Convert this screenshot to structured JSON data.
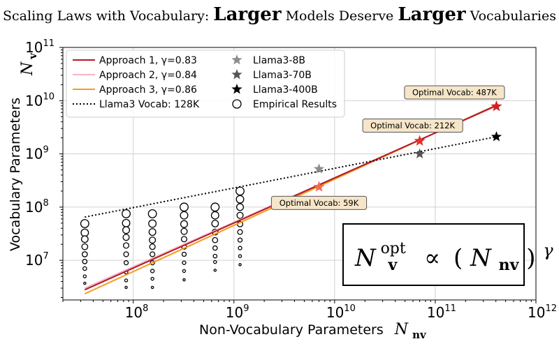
{
  "title": {
    "part1": "Scaling Laws with Vocabulary:",
    "emph1": "Larger",
    "part2": "Models Deserve",
    "emph2": "Larger",
    "part3": "Vocabularies"
  },
  "chart_data": {
    "type": "line",
    "xscale": "log",
    "yscale": "log",
    "xlim": [
      20000000,
      1000000000000
    ],
    "ylim": [
      1800000,
      100000000000
    ],
    "grid": true,
    "legend_position": "top-left",
    "xlabel": "Non-Vocabulary Parameters",
    "xlabel_symbol": "N",
    "xlabel_subscript": "nv",
    "ylabel": "Vocabulary Parameters",
    "ylabel_symbol": "N",
    "ylabel_subscript": "v",
    "x_ticks": [
      {
        "value": 100000000,
        "base": "10",
        "exp": "8"
      },
      {
        "value": 1000000000,
        "base": "10",
        "exp": "9"
      },
      {
        "value": 10000000000,
        "base": "10",
        "exp": "10"
      },
      {
        "value": 100000000000,
        "base": "10",
        "exp": "11"
      },
      {
        "value": 1000000000000,
        "base": "10",
        "exp": "12"
      }
    ],
    "y_ticks": [
      {
        "value": 10000000,
        "base": "10",
        "exp": "7"
      },
      {
        "value": 100000000,
        "base": "10",
        "exp": "8"
      },
      {
        "value": 1000000000,
        "base": "10",
        "exp": "9"
      },
      {
        "value": 10000000000,
        "base": "10",
        "exp": "10"
      },
      {
        "value": 100000000000,
        "base": "10",
        "exp": "11"
      }
    ],
    "series": [
      {
        "name": "Approach 1, γ=0.83",
        "kind": "line",
        "color": "#b2182b",
        "width": 2,
        "x": [
          33000000,
          405000000000
        ],
        "y": [
          2800000,
          8100000000
        ]
      },
      {
        "name": "Approach 2, γ=0.84",
        "kind": "line",
        "color": "#f4b6c2",
        "width": 2,
        "x": [
          33000000,
          405000000000
        ],
        "y": [
          3000000,
          7900000000
        ]
      },
      {
        "name": "Approach 3, γ=0.86",
        "kind": "line",
        "color": "#f59b1d",
        "width": 2,
        "x": [
          33000000,
          405000000000
        ],
        "y": [
          2350000,
          8300000000
        ]
      },
      {
        "name": "Llama3 Vocab: 128K",
        "kind": "dotted",
        "color": "#000000",
        "width": 2,
        "x": [
          33000000,
          405000000000
        ],
        "y": [
          65000000,
          2100000000
        ]
      }
    ],
    "stars": [
      {
        "name": "Llama3-8B",
        "color": "#8c8c8c",
        "x": 7000000000,
        "y": 520000000
      },
      {
        "name": "Llama3-70B",
        "color": "#555555",
        "x": 70000000000,
        "y": 1000000000
      },
      {
        "name": "Llama3-400B",
        "color": "#000000",
        "x": 405000000000,
        "y": 2100000000
      }
    ],
    "optimal_points": [
      {
        "label": "Optimal Vocab: 59K",
        "x": 7000000000,
        "y": 240000000,
        "color": "#f26b4f"
      },
      {
        "label": "Optimal Vocab: 212K",
        "x": 70000000000,
        "y": 1750000000,
        "color": "#e0322b"
      },
      {
        "label": "Optimal Vocab: 487K",
        "x": 405000000000,
        "y": 7800000000,
        "color": "#d42020"
      }
    ],
    "empirical_results": {
      "name": "Empirical Results",
      "groups": [
        {
          "x": 33000000,
          "y": [
            49000000,
            33000000,
            25000000,
            18000000,
            13000000,
            9500000,
            7000000,
            5000000,
            3700000
          ]
        },
        {
          "x": 85000000,
          "y": [
            75000000,
            50000000,
            37000000,
            27000000,
            19000000,
            13000000,
            9000000,
            6000000,
            4200000,
            3100000
          ]
        },
        {
          "x": 155000000,
          "y": [
            75000000,
            49000000,
            34000000,
            24000000,
            18000000,
            13000000,
            9000000,
            6300000,
            4500000,
            3100000
          ]
        },
        {
          "x": 320000000,
          "y": [
            100000000,
            70000000,
            48000000,
            35000000,
            25000000,
            18000000,
            13000000,
            9000000,
            6300000,
            4300000
          ]
        },
        {
          "x": 650000000,
          "y": [
            100000000,
            70000000,
            49000000,
            34000000,
            24000000,
            17000000,
            12000000,
            9300000,
            6500000
          ]
        },
        {
          "x": 1150000000,
          "y": [
            200000000,
            140000000,
            100000000,
            70000000,
            48000000,
            34000000,
            24000000,
            17000000,
            12000000,
            8300000
          ]
        }
      ]
    },
    "formula": {
      "symbol": "N",
      "subscript": "v",
      "superscript": "opt",
      "proportional": "∝",
      "open": "(",
      "inner_subscript": "nv",
      "close": ")",
      "exponent": "γ"
    }
  }
}
